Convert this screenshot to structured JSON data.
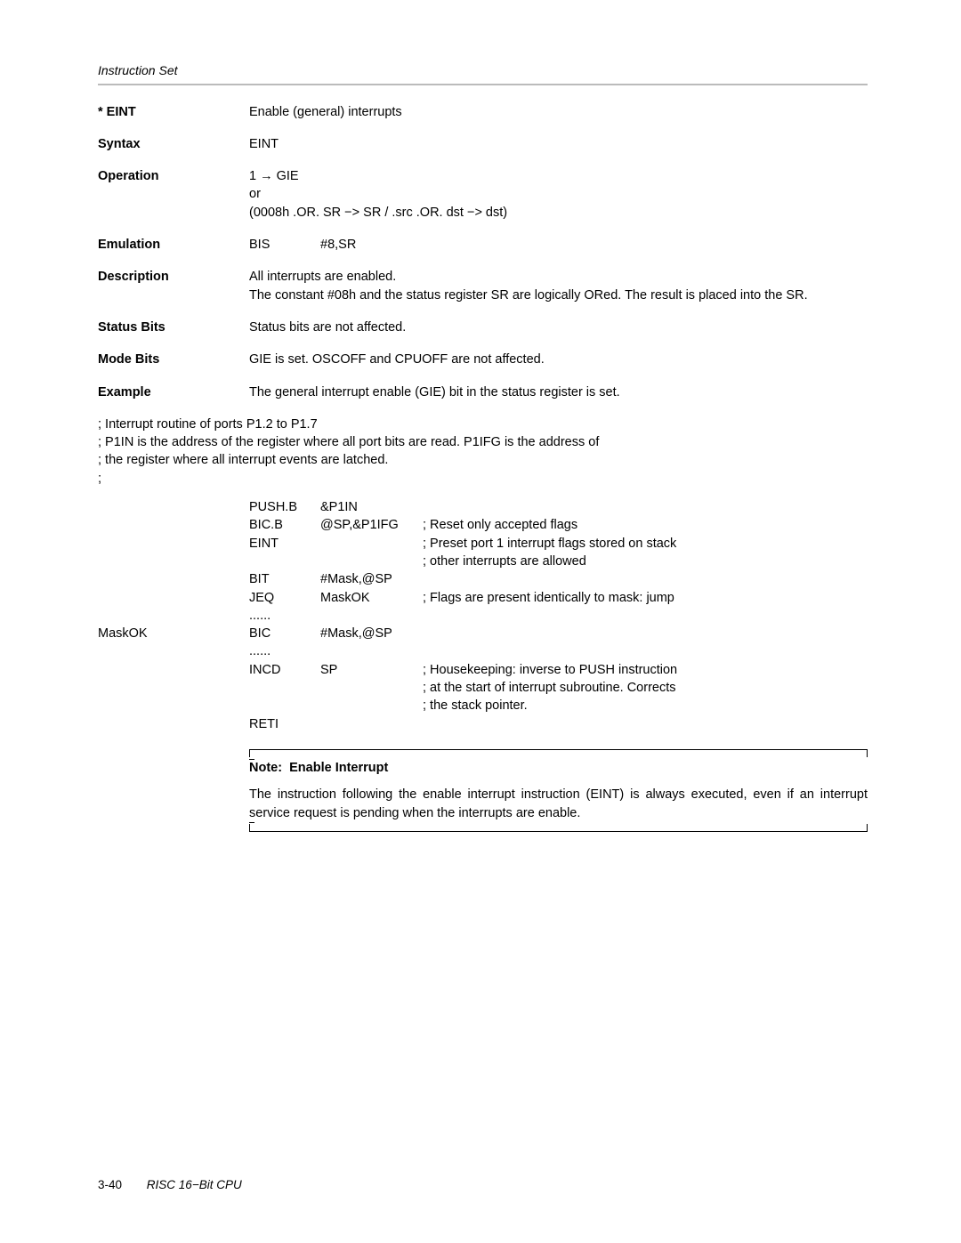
{
  "header": {
    "section": "Instruction Set"
  },
  "defs": [
    {
      "label": "* EINT",
      "content": "Enable (general) interrupts"
    },
    {
      "label": "Syntax",
      "content": "EINT"
    }
  ],
  "operation": {
    "label": "Operation",
    "line1a": "1 ",
    "line1b": " GIE",
    "line2": "or",
    "line3": "(0008h .OR. SR −> SR  /  .src .OR. dst −> dst)"
  },
  "emulation": {
    "label": "Emulation",
    "c1": "BIS",
    "c2": "#8,SR"
  },
  "description": {
    "label": "Description",
    "text": "All interrupts are enabled.\nThe constant #08h and the status register SR are logically ORed. The result is placed into the SR."
  },
  "statusBits": {
    "label": "Status Bits",
    "text": "Status bits are not affected."
  },
  "modeBits": {
    "label": "Mode Bits",
    "text": "GIE is set. OSCOFF and CPUOFF are not affected."
  },
  "example": {
    "label": "Example",
    "text": "The general interrupt enable (GIE) bit in the status register is set."
  },
  "comments": [
    "; Interrupt routine of ports P1.2 to P1.7",
    "; P1IN is the address of the register where all port bits are read. P1IFG is the address of",
    "; the register where all interrupt events are latched.",
    ";"
  ],
  "code": [
    {
      "lab": "",
      "op": "PUSH.B",
      "arg": "&P1IN",
      "com": ""
    },
    {
      "lab": "",
      "op": "BIC.B",
      "arg": "@SP,&P1IFG",
      "com": "; Reset only accepted flags"
    },
    {
      "lab": "",
      "op": "EINT",
      "arg": "",
      "com": "; Preset port 1 interrupt flags stored on stack"
    },
    {
      "lab": "",
      "op": "",
      "arg": "",
      "com": "; other interrupts are allowed"
    },
    {
      "lab": "",
      "op": "BIT",
      "arg": "#Mask,@SP",
      "com": ""
    },
    {
      "lab": "",
      "op": "JEQ",
      "arg": "MaskOK",
      "com": "; Flags are present identically to mask: jump"
    },
    {
      "lab": "",
      "op": "......",
      "arg": "",
      "com": ""
    },
    {
      "lab": "MaskOK",
      "op": "BIC",
      "arg": "#Mask,@SP",
      "com": ""
    },
    {
      "lab": "",
      "op": "......",
      "arg": "",
      "com": ""
    },
    {
      "lab": "",
      "op": "INCD",
      "arg": "SP",
      "com": "; Housekeeping: inverse to PUSH instruction"
    },
    {
      "lab": "",
      "op": "",
      "arg": "",
      "com": "; at the start of interrupt subroutine. Corrects"
    },
    {
      "lab": "",
      "op": "",
      "arg": "",
      "com": "; the stack pointer."
    },
    {
      "lab": "",
      "op": "RETI",
      "arg": "",
      "com": ""
    }
  ],
  "note": {
    "titlePrefix": "Note:",
    "title": "Enable Interrupt",
    "body": "The instruction following the enable interrupt instruction (EINT) is always executed, even if an interrupt service request is pending when the interrupts are enable."
  },
  "footer": {
    "page": "3-40",
    "title": "RISC 16−Bit CPU"
  },
  "glyphs": {
    "rightArrow": "→"
  }
}
